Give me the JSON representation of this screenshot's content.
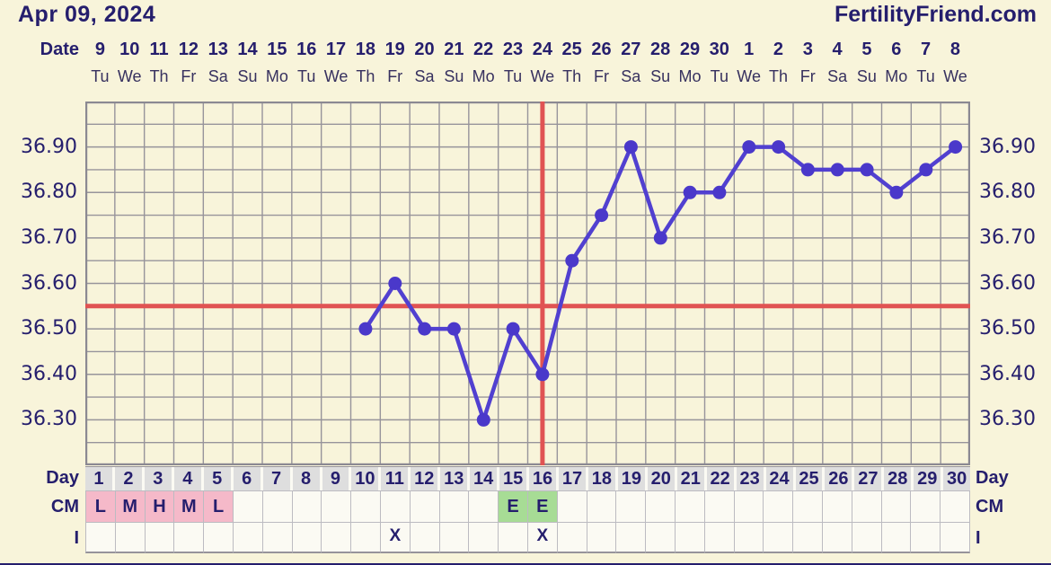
{
  "header": {
    "title": "Apr 09, 2024",
    "brand": "FertilityFriend.com"
  },
  "axis": {
    "date_label": "Date",
    "dates": [
      "9",
      "10",
      "11",
      "12",
      "13",
      "14",
      "15",
      "16",
      "17",
      "18",
      "19",
      "20",
      "21",
      "22",
      "23",
      "24",
      "25",
      "26",
      "27",
      "28",
      "29",
      "30",
      "1",
      "2",
      "3",
      "4",
      "5",
      "6",
      "7",
      "8"
    ],
    "weekdays": [
      "Tu",
      "We",
      "Th",
      "Fr",
      "Sa",
      "Su",
      "Mo",
      "Tu",
      "We",
      "Th",
      "Fr",
      "Sa",
      "Su",
      "Mo",
      "Tu",
      "We",
      "Th",
      "Fr",
      "Sa",
      "Su",
      "Mo",
      "Tu",
      "We",
      "Th",
      "Fr",
      "Sa",
      "Su",
      "Mo",
      "Tu",
      "We"
    ]
  },
  "chart_data": {
    "type": "line",
    "x_label": "Day",
    "x": [
      10,
      11,
      12,
      13,
      14,
      15,
      16,
      17,
      18,
      19,
      20,
      21,
      22,
      23,
      24,
      25,
      26,
      27,
      28,
      29,
      30
    ],
    "series": [
      {
        "name": "temperature-celsius",
        "values": [
          36.5,
          36.6,
          36.5,
          36.5,
          36.3,
          36.5,
          36.4,
          36.65,
          36.75,
          36.9,
          36.7,
          36.8,
          36.8,
          36.9,
          36.9,
          36.85,
          36.85,
          36.85,
          36.8,
          36.85,
          36.9
        ]
      }
    ],
    "x_total_days": 30,
    "ylim": [
      36.2,
      37.0
    ],
    "y_grid_step": 0.05,
    "y_tick_labels": [
      "36.90",
      "36.80",
      "36.70",
      "36.60",
      "36.50",
      "36.40",
      "36.30"
    ],
    "coverline_value": 36.55,
    "ovulation_line_day": 16,
    "grid": true,
    "legend": "none"
  },
  "table": {
    "day_label": "Day",
    "cm_label": "CM",
    "i_label": "I",
    "days": [
      "1",
      "2",
      "3",
      "4",
      "5",
      "6",
      "7",
      "8",
      "9",
      "10",
      "11",
      "12",
      "13",
      "14",
      "15",
      "16",
      "17",
      "18",
      "19",
      "20",
      "21",
      "22",
      "23",
      "24",
      "25",
      "26",
      "27",
      "28",
      "29",
      "30"
    ],
    "cm_entries": [
      {
        "day": 1,
        "value": "L",
        "highlight": "pink"
      },
      {
        "day": 2,
        "value": "M",
        "highlight": "pink"
      },
      {
        "day": 3,
        "value": "H",
        "highlight": "pink"
      },
      {
        "day": 4,
        "value": "M",
        "highlight": "pink"
      },
      {
        "day": 5,
        "value": "L",
        "highlight": "pink"
      },
      {
        "day": 15,
        "value": "E",
        "highlight": "green"
      },
      {
        "day": 16,
        "value": "E",
        "highlight": "green"
      }
    ],
    "intercourse_mark": "X",
    "intercourse_days": [
      11,
      16
    ]
  },
  "colors": {
    "background": "#f8f4da",
    "navy": "#251e6d",
    "weekday_text": "#37315f",
    "grid": "#97949b",
    "plot_border": "#8b8992",
    "red": "#e05353",
    "line": "#5140d0",
    "dot": "#4a38ca",
    "day_cell_bg": "#dedede",
    "cell_bg": "#fbfaf3",
    "cell_border": "#bcbbc1",
    "pink": "#f5b9c9",
    "green": "#a7dc95"
  }
}
